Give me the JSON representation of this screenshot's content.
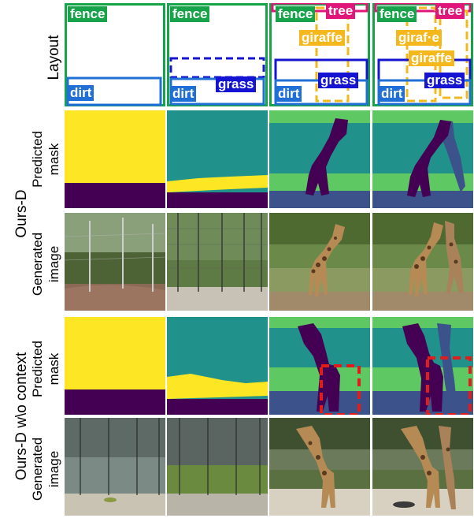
{
  "row_labels": {
    "layout": "Layout",
    "ours_d": "Ours-D",
    "ours_d_wo": "Ours-D w\\o context",
    "predicted_mask_1": "Predicted",
    "predicted_mask_2": "mask",
    "generated_image_1": "Generated",
    "generated_image_2": "image"
  },
  "layout_tags": {
    "fence": "fence",
    "dirt": "dirt",
    "grass": "grass",
    "tree": "tree",
    "giraffe": "giraffe",
    "giraffe_partial": "giraf·e"
  },
  "colors": {
    "fence": "#16a34a",
    "dirt": "#1f6fd6",
    "grass": "#1414d2",
    "tree": "#e0177a",
    "giraffe": "#f4b81c",
    "mask_yellow": "#fde725",
    "mask_purple": "#440154",
    "mask_teal": "#21918c",
    "mask_green": "#5ec962",
    "mask_blue": "#3b528b",
    "highlight": "#e21b1b"
  }
}
